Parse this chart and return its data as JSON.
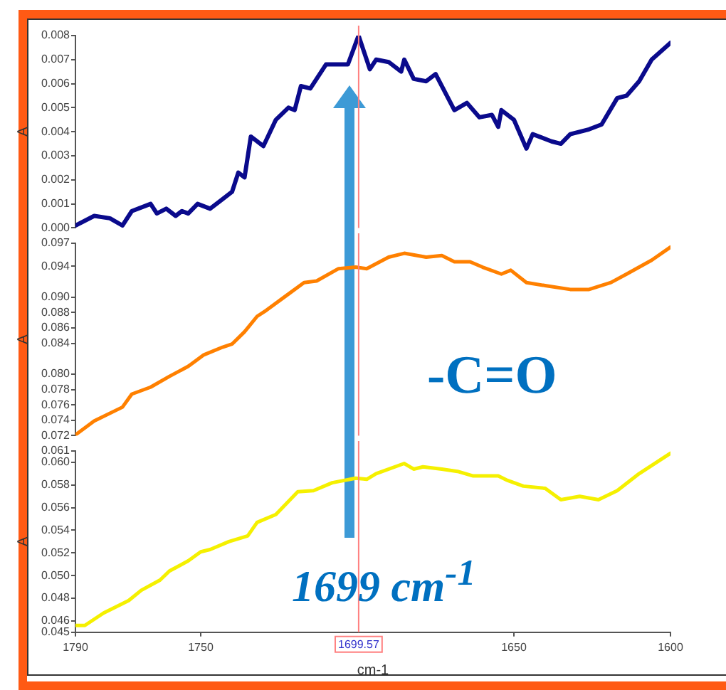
{
  "chart_data": [
    {
      "type": "line",
      "ylabel": "A",
      "xlim": [
        1790,
        1600
      ],
      "ylim": [
        0,
        0.008
      ],
      "yticks": [
        {
          "value": 0,
          "label": "0.000"
        },
        0.001,
        0.002,
        0.003,
        0.004,
        0.005,
        0.006,
        0.007,
        0.008
      ],
      "tick_labels": "y",
      "grid": false,
      "legend": false,
      "marker": "none",
      "line_style": "solid",
      "ref_lines": [
        {
          "axis": "x",
          "value": 1699.57,
          "color": "#ff8080"
        }
      ],
      "series": [
        {
          "color": "#0a0a8c",
          "x": [
            1790,
            1784,
            1779,
            1775,
            1772,
            1766,
            1764,
            1761,
            1758,
            1756,
            1754,
            1751,
            1747,
            1743,
            1740,
            1738,
            1736,
            1734,
            1730,
            1726,
            1722,
            1720,
            1718,
            1715,
            1710,
            1703,
            1699.6,
            1696,
            1694,
            1690,
            1686,
            1685,
            1682,
            1678,
            1675,
            1669,
            1665,
            1661,
            1657,
            1655,
            1654,
            1650,
            1646,
            1644,
            1638,
            1635,
            1632,
            1626,
            1622,
            1617,
            1614,
            1610,
            1606,
            1600
          ],
          "values": [
            0.0001,
            0.0005,
            0.0004,
            0.0001,
            0.0007,
            0.001,
            0.0006,
            0.0008,
            0.0005,
            0.0007,
            0.0006,
            0.001,
            0.0008,
            0.0012,
            0.0015,
            0.0023,
            0.0021,
            0.0038,
            0.0034,
            0.0045,
            0.005,
            0.0049,
            0.0059,
            0.0058,
            0.0068,
            0.0068,
            0.008,
            0.0066,
            0.007,
            0.0069,
            0.0065,
            0.007,
            0.0062,
            0.0061,
            0.0064,
            0.0049,
            0.0052,
            0.0046,
            0.0047,
            0.0042,
            0.0049,
            0.0045,
            0.0033,
            0.0039,
            0.0036,
            0.0035,
            0.0039,
            0.0041,
            0.0043,
            0.0054,
            0.0055,
            0.0061,
            0.007,
            0.0077
          ]
        }
      ]
    },
    {
      "type": "line",
      "ylabel": "A",
      "xlim": [
        1790,
        1600
      ],
      "ylim": [
        0.072,
        0.097
      ],
      "yticks": [
        0.072,
        0.074,
        0.076,
        0.078,
        {
          "value": 0.08,
          "label": "0.080"
        },
        0.084,
        0.086,
        0.088,
        {
          "value": 0.09,
          "label": "0.090"
        },
        0.094,
        0.097
      ],
      "tick_labels": "y",
      "grid": false,
      "legend": false,
      "marker": "none",
      "line_style": "solid",
      "ref_lines": [
        {
          "axis": "x",
          "value": 1699.57,
          "color": "#ff8080"
        }
      ],
      "annotations": [
        "-C=O"
      ],
      "series": [
        {
          "color": "#ff8000",
          "x": [
            1790,
            1784,
            1775,
            1772,
            1766,
            1760,
            1754,
            1749,
            1743,
            1740,
            1736,
            1732,
            1729,
            1723,
            1717,
            1713,
            1706,
            1700.5,
            1697,
            1690,
            1685,
            1678,
            1673,
            1669,
            1664,
            1660,
            1654,
            1651,
            1646,
            1640,
            1632,
            1626,
            1619,
            1614,
            1606,
            1600
          ],
          "values": [
            0.0721,
            0.0739,
            0.0757,
            0.0774,
            0.0783,
            0.0797,
            0.081,
            0.0825,
            0.0835,
            0.0839,
            0.0855,
            0.0875,
            0.0883,
            0.0901,
            0.0919,
            0.0921,
            0.0937,
            0.0939,
            0.0937,
            0.0952,
            0.0957,
            0.0952,
            0.0954,
            0.0946,
            0.0946,
            0.0939,
            0.093,
            0.0935,
            0.0919,
            0.0915,
            0.091,
            0.091,
            0.0919,
            0.093,
            0.0948,
            0.0965
          ]
        }
      ]
    },
    {
      "type": "line",
      "xlabel": "cm-1",
      "ylabel": "A",
      "xlim": [
        1790,
        1600
      ],
      "xticks": [
        1790,
        1750,
        1650,
        1600
      ],
      "ylim": [
        0.045,
        0.061
      ],
      "yticks": [
        0.045,
        0.046,
        0.048,
        {
          "value": 0.05,
          "label": "0.050"
        },
        0.052,
        0.054,
        0.056,
        0.058,
        {
          "value": 0.06,
          "label": "0.060"
        },
        0.061
      ],
      "grid": false,
      "legend": false,
      "marker": "none",
      "line_style": "solid",
      "ref_lines": [
        {
          "axis": "x",
          "value": 1699.57,
          "label": "1699.57",
          "color": "#ff8080"
        }
      ],
      "annotations": [
        "1699 cm$^{-1}$"
      ],
      "series": [
        {
          "color": "#f5f000",
          "x": [
            1790,
            1787,
            1781,
            1773,
            1769,
            1763,
            1760,
            1754,
            1750,
            1747,
            1741,
            1735,
            1732,
            1726,
            1719,
            1714,
            1708,
            1700.5,
            1697,
            1694,
            1685,
            1682,
            1679,
            1673,
            1668,
            1663,
            1655,
            1652,
            1647,
            1640,
            1635,
            1629,
            1623,
            1617,
            1610,
            1600
          ],
          "values": [
            0.0456,
            0.0456,
            0.0467,
            0.0478,
            0.0487,
            0.0496,
            0.0504,
            0.0513,
            0.0521,
            0.0523,
            0.053,
            0.0535,
            0.0547,
            0.0554,
            0.0574,
            0.0575,
            0.0582,
            0.0586,
            0.0585,
            0.059,
            0.0599,
            0.0594,
            0.0596,
            0.0594,
            0.0592,
            0.0588,
            0.0588,
            0.0584,
            0.0579,
            0.0577,
            0.0567,
            0.057,
            0.0567,
            0.0575,
            0.059,
            0.0608
          ]
        }
      ]
    }
  ]
}
